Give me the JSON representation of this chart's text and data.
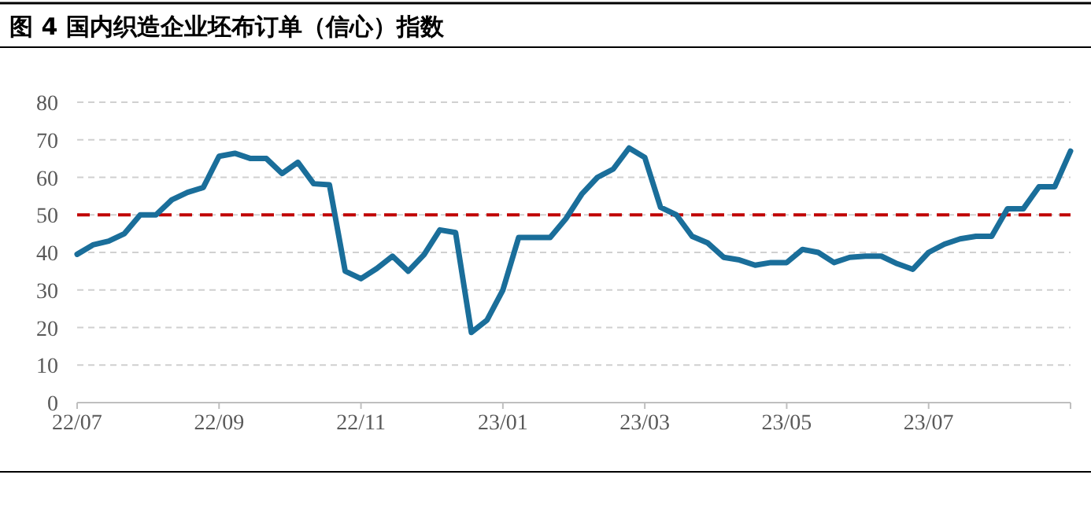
{
  "chart_data": {
    "type": "line",
    "title": "图 4 国内织造企业坯布订单（信心）指数",
    "categories": [
      "22/07",
      null,
      null,
      null,
      null,
      null,
      null,
      null,
      null,
      "22/09",
      null,
      null,
      null,
      null,
      null,
      null,
      null,
      null,
      "22/11",
      null,
      null,
      null,
      null,
      null,
      null,
      null,
      null,
      "23/01",
      null,
      null,
      null,
      null,
      null,
      null,
      null,
      null,
      "23/03",
      null,
      null,
      null,
      null,
      null,
      null,
      null,
      null,
      "23/05",
      null,
      null,
      null,
      null,
      null,
      null,
      null,
      null,
      "23/07",
      null,
      null,
      null,
      null,
      null,
      null,
      null,
      null,
      null
    ],
    "series": [
      {
        "color": "#1a6e9a",
        "values": [
          39.5,
          42,
          43,
          45,
          50,
          50,
          54,
          56,
          57.3,
          65.6,
          66.4,
          65,
          65,
          61,
          64,
          58.3,
          58,
          35,
          33,
          35.7,
          39,
          35,
          39.4,
          46,
          45.3,
          18.7,
          22,
          30,
          44,
          44,
          44,
          49,
          55.5,
          60,
          62.2,
          67.8,
          65.3,
          52,
          50,
          44.3,
          42.5,
          38.7,
          38,
          36.6,
          37.3,
          37.3,
          40.8,
          40,
          37.3,
          38.7,
          39,
          39,
          37,
          35.5,
          40,
          42.2,
          43.6,
          44.3,
          44.3,
          51.6,
          51.6,
          57.5,
          57.5,
          67
        ]
      }
    ],
    "ylim": [
      0,
      80
    ],
    "yticks": [
      0,
      10,
      20,
      30,
      40,
      50,
      60,
      70,
      80
    ],
    "grid": "y",
    "ref_lines": [
      {
        "axis": "y",
        "value": 50,
        "color": "#c00000",
        "line_style": "dashed"
      }
    ],
    "marker": "none",
    "line_style": "solid"
  }
}
